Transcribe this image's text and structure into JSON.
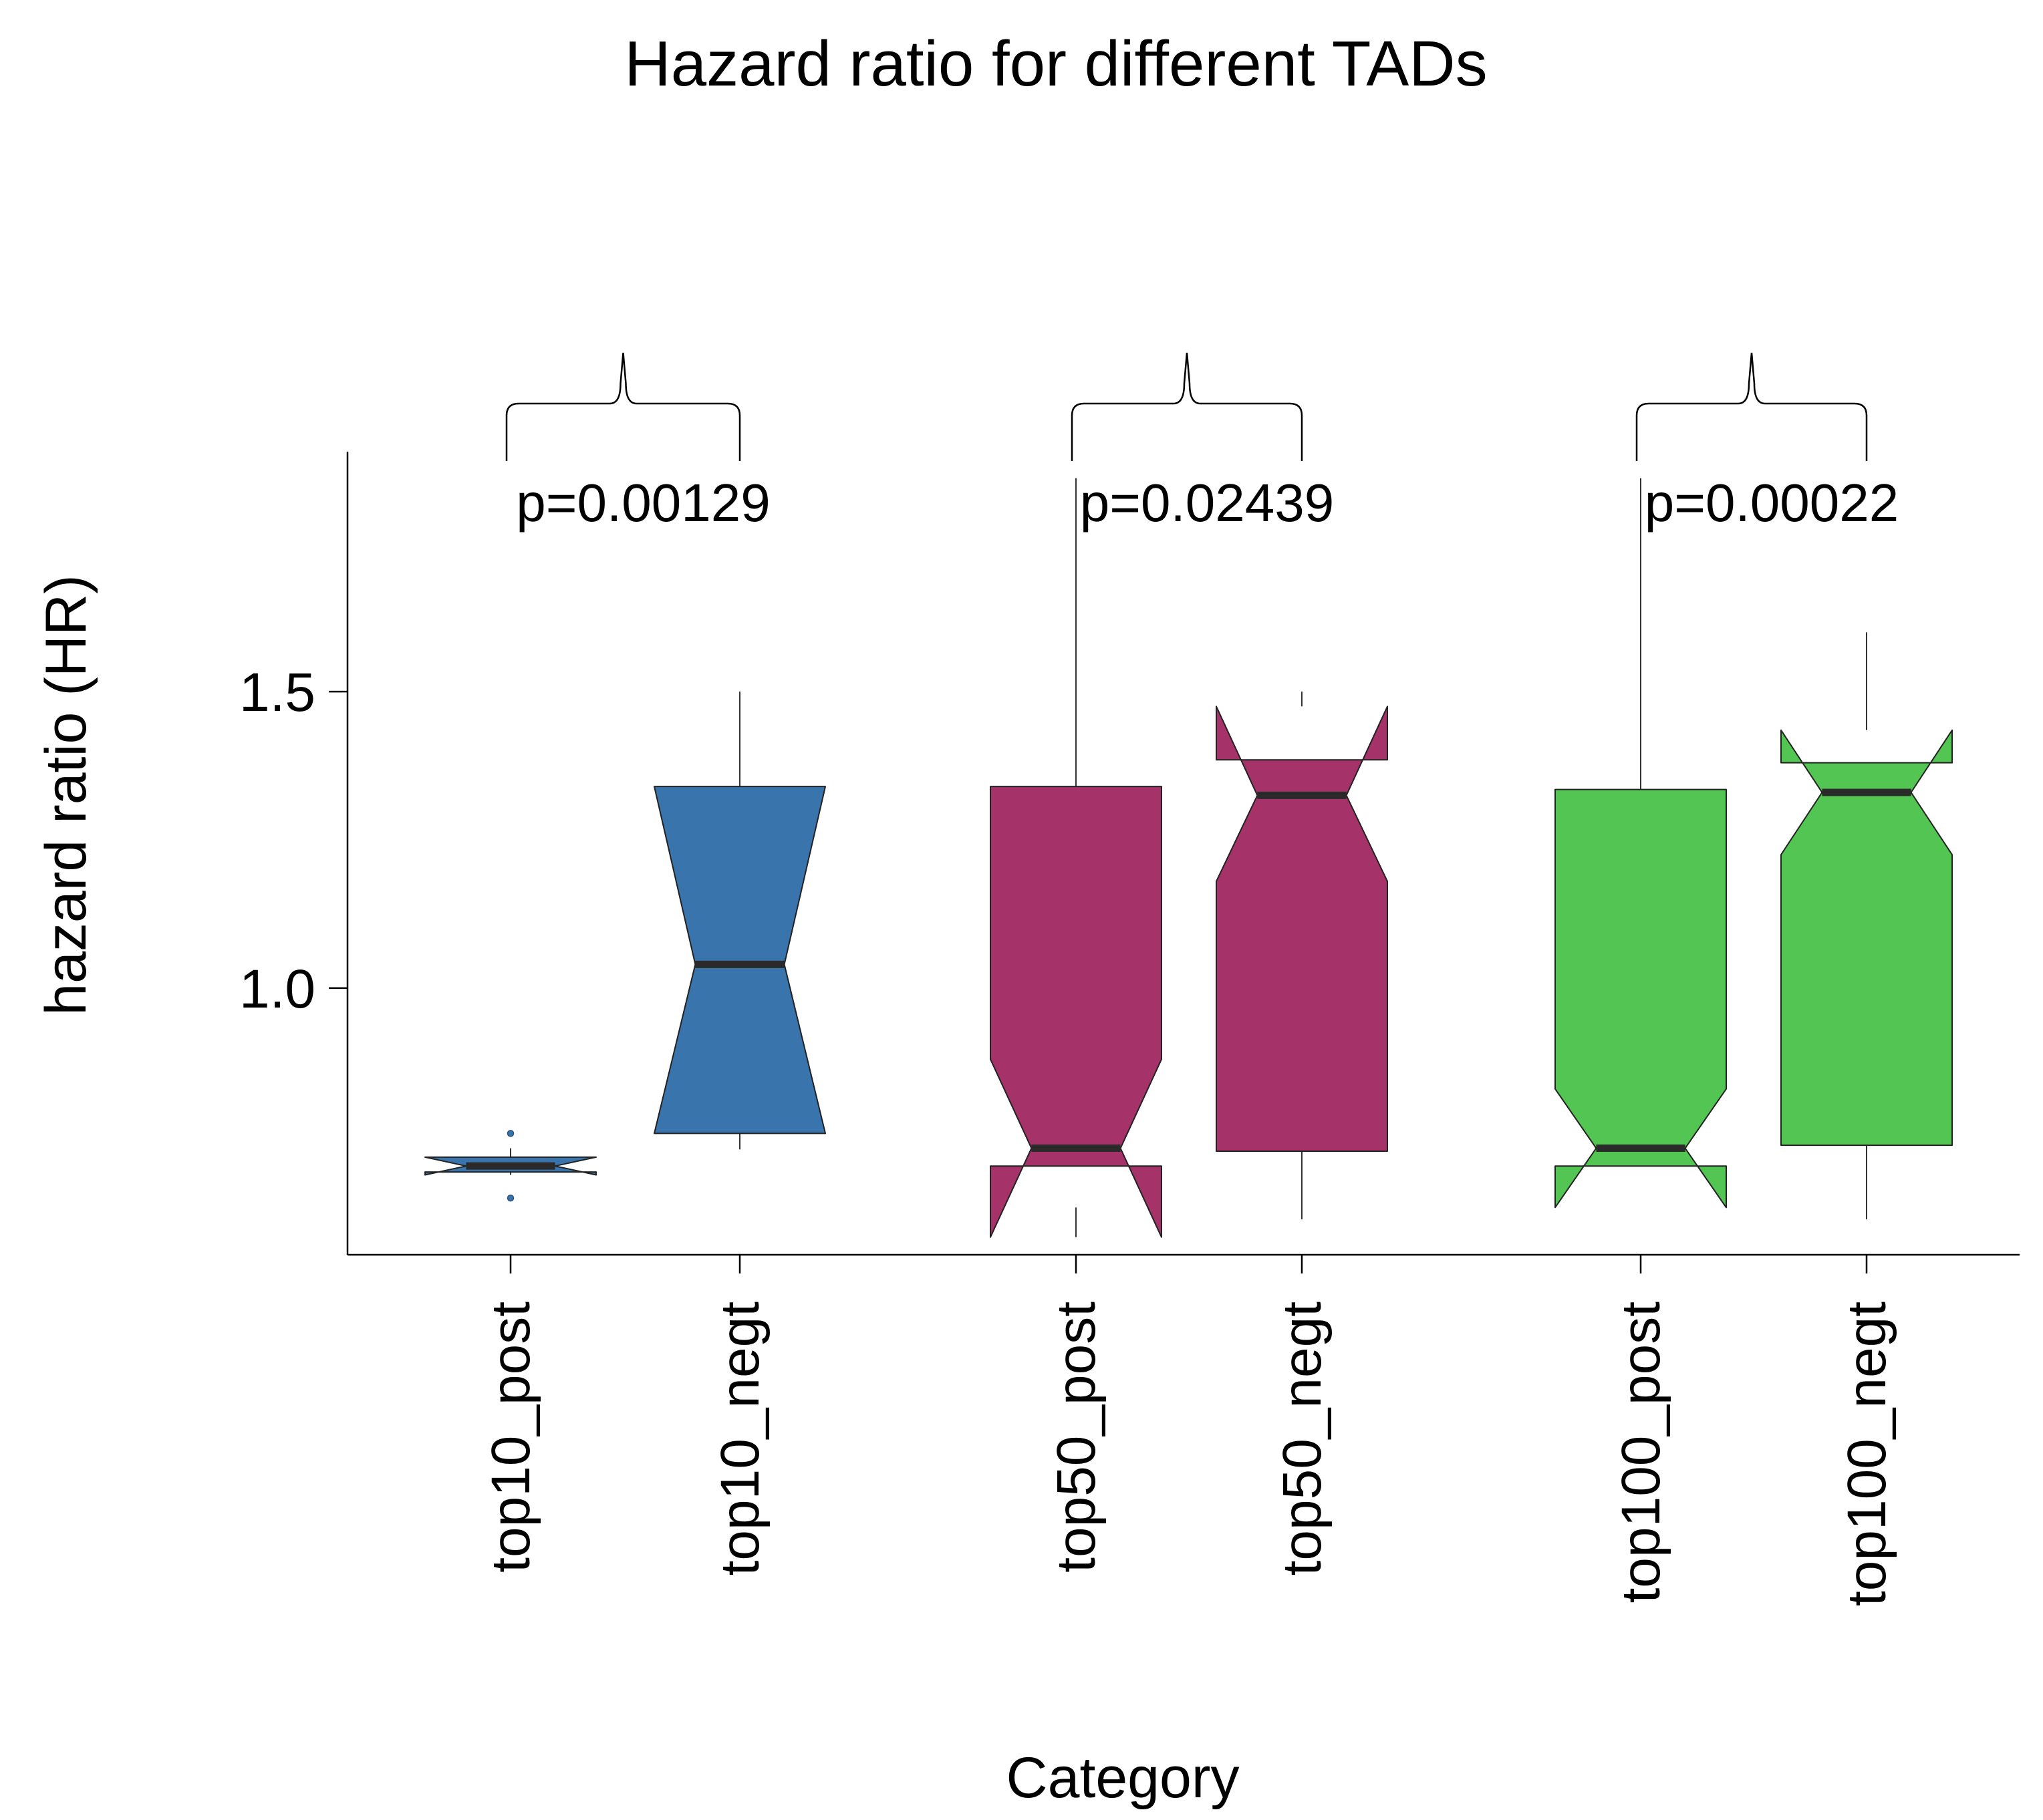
{
  "chart_data": {
    "type": "boxplot",
    "title": "Hazard ratio for different TADs",
    "xlabel": "Category",
    "ylabel": "hazard ratio (HR)",
    "ylim": [
      0.55,
      1.9
    ],
    "yticks": [
      {
        "value": 1.0,
        "label": "1.0"
      },
      {
        "value": 1.5,
        "label": "1.5"
      }
    ],
    "notched": true,
    "boxes": [
      {
        "category": "top10_post",
        "color": "#3a74ad",
        "whisker_low": 0.69,
        "q1": 0.69,
        "median": 0.7,
        "q3": 0.715,
        "whisker_high": 0.73,
        "notch_low": 0.685,
        "notch_high": 0.715,
        "outliers": [
          0.646,
          0.755
        ]
      },
      {
        "category": "top10_negt",
        "color": "#3a74ad",
        "whisker_low": 0.728,
        "q1": 0.755,
        "median": 1.04,
        "q3": 1.34,
        "whisker_high": 1.5,
        "notch_low": 0.755,
        "notch_high": 1.34,
        "outliers": []
      },
      {
        "category": "top50_post",
        "color": "#a53268",
        "whisker_low": 0.63,
        "q1": 0.7,
        "median": 0.73,
        "q3": 1.34,
        "whisker_high": 1.86,
        "notch_low": 0.58,
        "notch_high": 0.88,
        "outliers": []
      },
      {
        "category": "top50_negt",
        "color": "#a53268",
        "whisker_low": 0.61,
        "q1": 0.725,
        "median": 1.325,
        "q3": 1.385,
        "whisker_high": 1.5,
        "notch_low": 1.18,
        "notch_high": 1.475,
        "outliers": []
      },
      {
        "category": "top100_post",
        "color": "#52c552",
        "whisker_low": 0.63,
        "q1": 0.7,
        "median": 0.73,
        "q3": 1.335,
        "whisker_high": 1.86,
        "notch_low": 0.63,
        "notch_high": 0.83,
        "outliers": []
      },
      {
        "category": "top100_negt",
        "color": "#52c552",
        "whisker_low": 0.61,
        "q1": 0.735,
        "median": 1.33,
        "q3": 1.38,
        "whisker_high": 1.6,
        "notch_low": 1.225,
        "notch_high": 1.435,
        "outliers": []
      }
    ],
    "comparisons": [
      {
        "pair": [
          "top10_post",
          "top10_negt"
        ],
        "label": "p=0.00129"
      },
      {
        "pair": [
          "top50_post",
          "top50_negt"
        ],
        "label": "p=0.02439"
      },
      {
        "pair": [
          "top100_post",
          "top100_negt"
        ],
        "label": "p=0.00022"
      }
    ],
    "grid": false,
    "legend": "none"
  }
}
